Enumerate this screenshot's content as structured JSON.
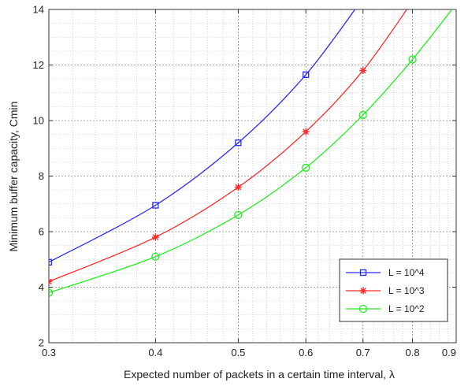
{
  "chart_data": {
    "type": "line",
    "xlabel": "Expected number of packets in a certain time interval, λ",
    "ylabel": "Minimum buffer capacity, Cmin",
    "xlim": [
      0.3,
      0.9
    ],
    "ylim": [
      2,
      14
    ],
    "x_scale": "log",
    "x_ticks": [
      0.3,
      0.4,
      0.5,
      0.6,
      0.7,
      0.8,
      0.9
    ],
    "x_tick_labels": [
      "0.3",
      "0.4",
      "0.5",
      "0.6",
      "0.7",
      "0.8",
      "0.9"
    ],
    "y_ticks": [
      2,
      4,
      6,
      8,
      10,
      12,
      14
    ],
    "y_tick_labels": [
      "2",
      "4",
      "6",
      "8",
      "10",
      "12",
      "14"
    ],
    "grid": true,
    "minor_grid": true,
    "legend_position": "bottom-right",
    "series": [
      {
        "name": "L = 10^4",
        "color": "#2a2aff",
        "marker": "square",
        "x": [
          0.3,
          0.4,
          0.5,
          0.6,
          0.7
        ],
        "y": [
          4.9,
          6.95,
          9.2,
          11.65,
          14.4
        ]
      },
      {
        "name": "L = 10^3",
        "color": "#ff2a2a",
        "marker": "star",
        "x": [
          0.3,
          0.4,
          0.5,
          0.6,
          0.7,
          0.8
        ],
        "y": [
          4.2,
          5.8,
          7.6,
          9.6,
          11.8,
          14.3
        ]
      },
      {
        "name": "L = 10^2",
        "color": "#22ee22",
        "marker": "circle",
        "x": [
          0.3,
          0.4,
          0.5,
          0.6,
          0.7,
          0.8,
          0.9
        ],
        "y": [
          3.8,
          5.1,
          6.6,
          8.3,
          10.2,
          12.2,
          14.2
        ]
      }
    ]
  }
}
